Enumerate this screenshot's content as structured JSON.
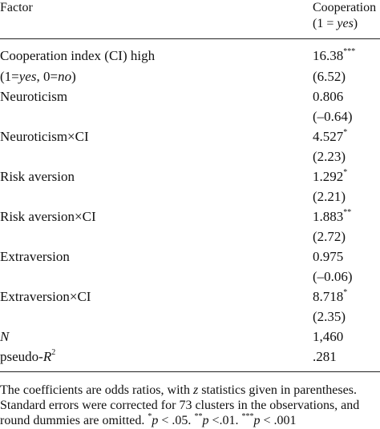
{
  "header": {
    "factor": "Factor",
    "cooperation_line1": "Cooperation",
    "cooperation_line2_prefix": "(1 = ",
    "cooperation_line2_em": "yes",
    "cooperation_line2_suffix": ")"
  },
  "rows": [
    {
      "factor": "Cooperation index (CI) high",
      "value": "16.38",
      "stars": "***"
    },
    {
      "factor_parts": [
        "(1=",
        "yes",
        ", 0=",
        "no",
        ")"
      ],
      "value": "(6.52)"
    },
    {
      "factor": "Neuroticism",
      "value": "0.806"
    },
    {
      "factor": "",
      "value": "(–0.64)"
    },
    {
      "factor": "Neuroticism×CI",
      "value": "4.527",
      "stars": "*"
    },
    {
      "factor": "",
      "value": "(2.23)"
    },
    {
      "factor": "Risk aversion",
      "value": "1.292",
      "stars": "*"
    },
    {
      "factor": "",
      "value": "(2.21)"
    },
    {
      "factor": "Risk aversion×CI",
      "value": "1.883",
      "stars": "**"
    },
    {
      "factor": "",
      "value": "(2.72)"
    },
    {
      "factor": "Extraversion",
      "value": "0.975"
    },
    {
      "factor": "",
      "value": "(–0.06)"
    },
    {
      "factor": "Extraversion×CI",
      "value": "8.718",
      "stars": "*"
    },
    {
      "factor": "",
      "value": "(2.35)"
    },
    {
      "factor": "N",
      "value": "1,460"
    },
    {
      "factor": "pseudo-",
      "factor_em": "R",
      "factor_sup": "2",
      "value": ".281"
    }
  ],
  "note": {
    "line1_a": "The coefficients are odds ratios, with ",
    "line1_em": "z",
    "line1_b": " statistics given in parentheses.",
    "line2": "Standard errors were corrected for 73 clusters in the observations, and",
    "line3_a": "round dummies are omitted. ",
    "s1": "*",
    "p1": "p",
    "t1": " < .05. ",
    "s2": "**",
    "p2": "p",
    "t2": " <.01. ",
    "s3": "***",
    "p3": "p",
    "t3": " < .001"
  }
}
